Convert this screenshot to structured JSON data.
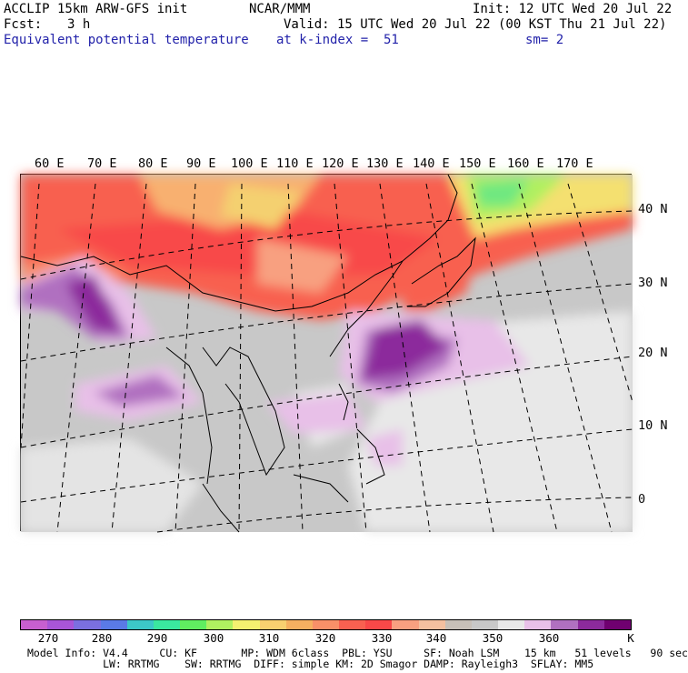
{
  "header": {
    "model": "ACCLIP 15km ARW-GFS init",
    "center": "NCAR/MMM",
    "init": "Init: 12 UTC Wed 20 Jul 22",
    "fcst_label": "Fcst:",
    "fcst_value": "3 h",
    "valid": "Valid: 15 UTC Wed 20 Jul 22 (00 KST Thu 21 Jul 22)",
    "field": "Equivalent potential temperature",
    "kindex": "at k-index =  51",
    "smooth": "sm= 2"
  },
  "map": {
    "lon_labels": [
      "60 E",
      "70 E",
      "80 E",
      "90 E",
      "100 E",
      "110 E",
      "120 E",
      "130 E",
      "140 E",
      "150 E",
      "160 E",
      "170 E"
    ],
    "lat_labels": [
      "40 N",
      "30 N",
      "20 N",
      "10 N",
      "0"
    ]
  },
  "colorbar": {
    "colors": [
      "#c85fd0",
      "#a855d8",
      "#7b6fe0",
      "#5a7ae6",
      "#3cc8c8",
      "#3ae8a0",
      "#60ee60",
      "#b0f060",
      "#f4f070",
      "#f8d070",
      "#f6b060",
      "#f89068",
      "#f86050",
      "#f84848",
      "#f8a080",
      "#f4c0a0",
      "#c8c0b8",
      "#c8c8c8",
      "#e8e8e8",
      "#e8c0e8",
      "#b070c0",
      "#8c2a9c",
      "#700070"
    ],
    "labels": [
      "270",
      "280",
      "290",
      "300",
      "310",
      "320",
      "330",
      "340",
      "350",
      "360"
    ],
    "unit": "K"
  },
  "footer": {
    "line1": "Model Info: V4.4     CU: KF       MP: WDM 6class  PBL: YSU     SF: Noah LSM    15 km   51 levels   90 sec",
    "line2": "            LW: RRTMG    SW: RRTMG  DIFF: simple KM: 2D Smagor DAMP: Rayleigh3  SFLAY: MM5"
  }
}
